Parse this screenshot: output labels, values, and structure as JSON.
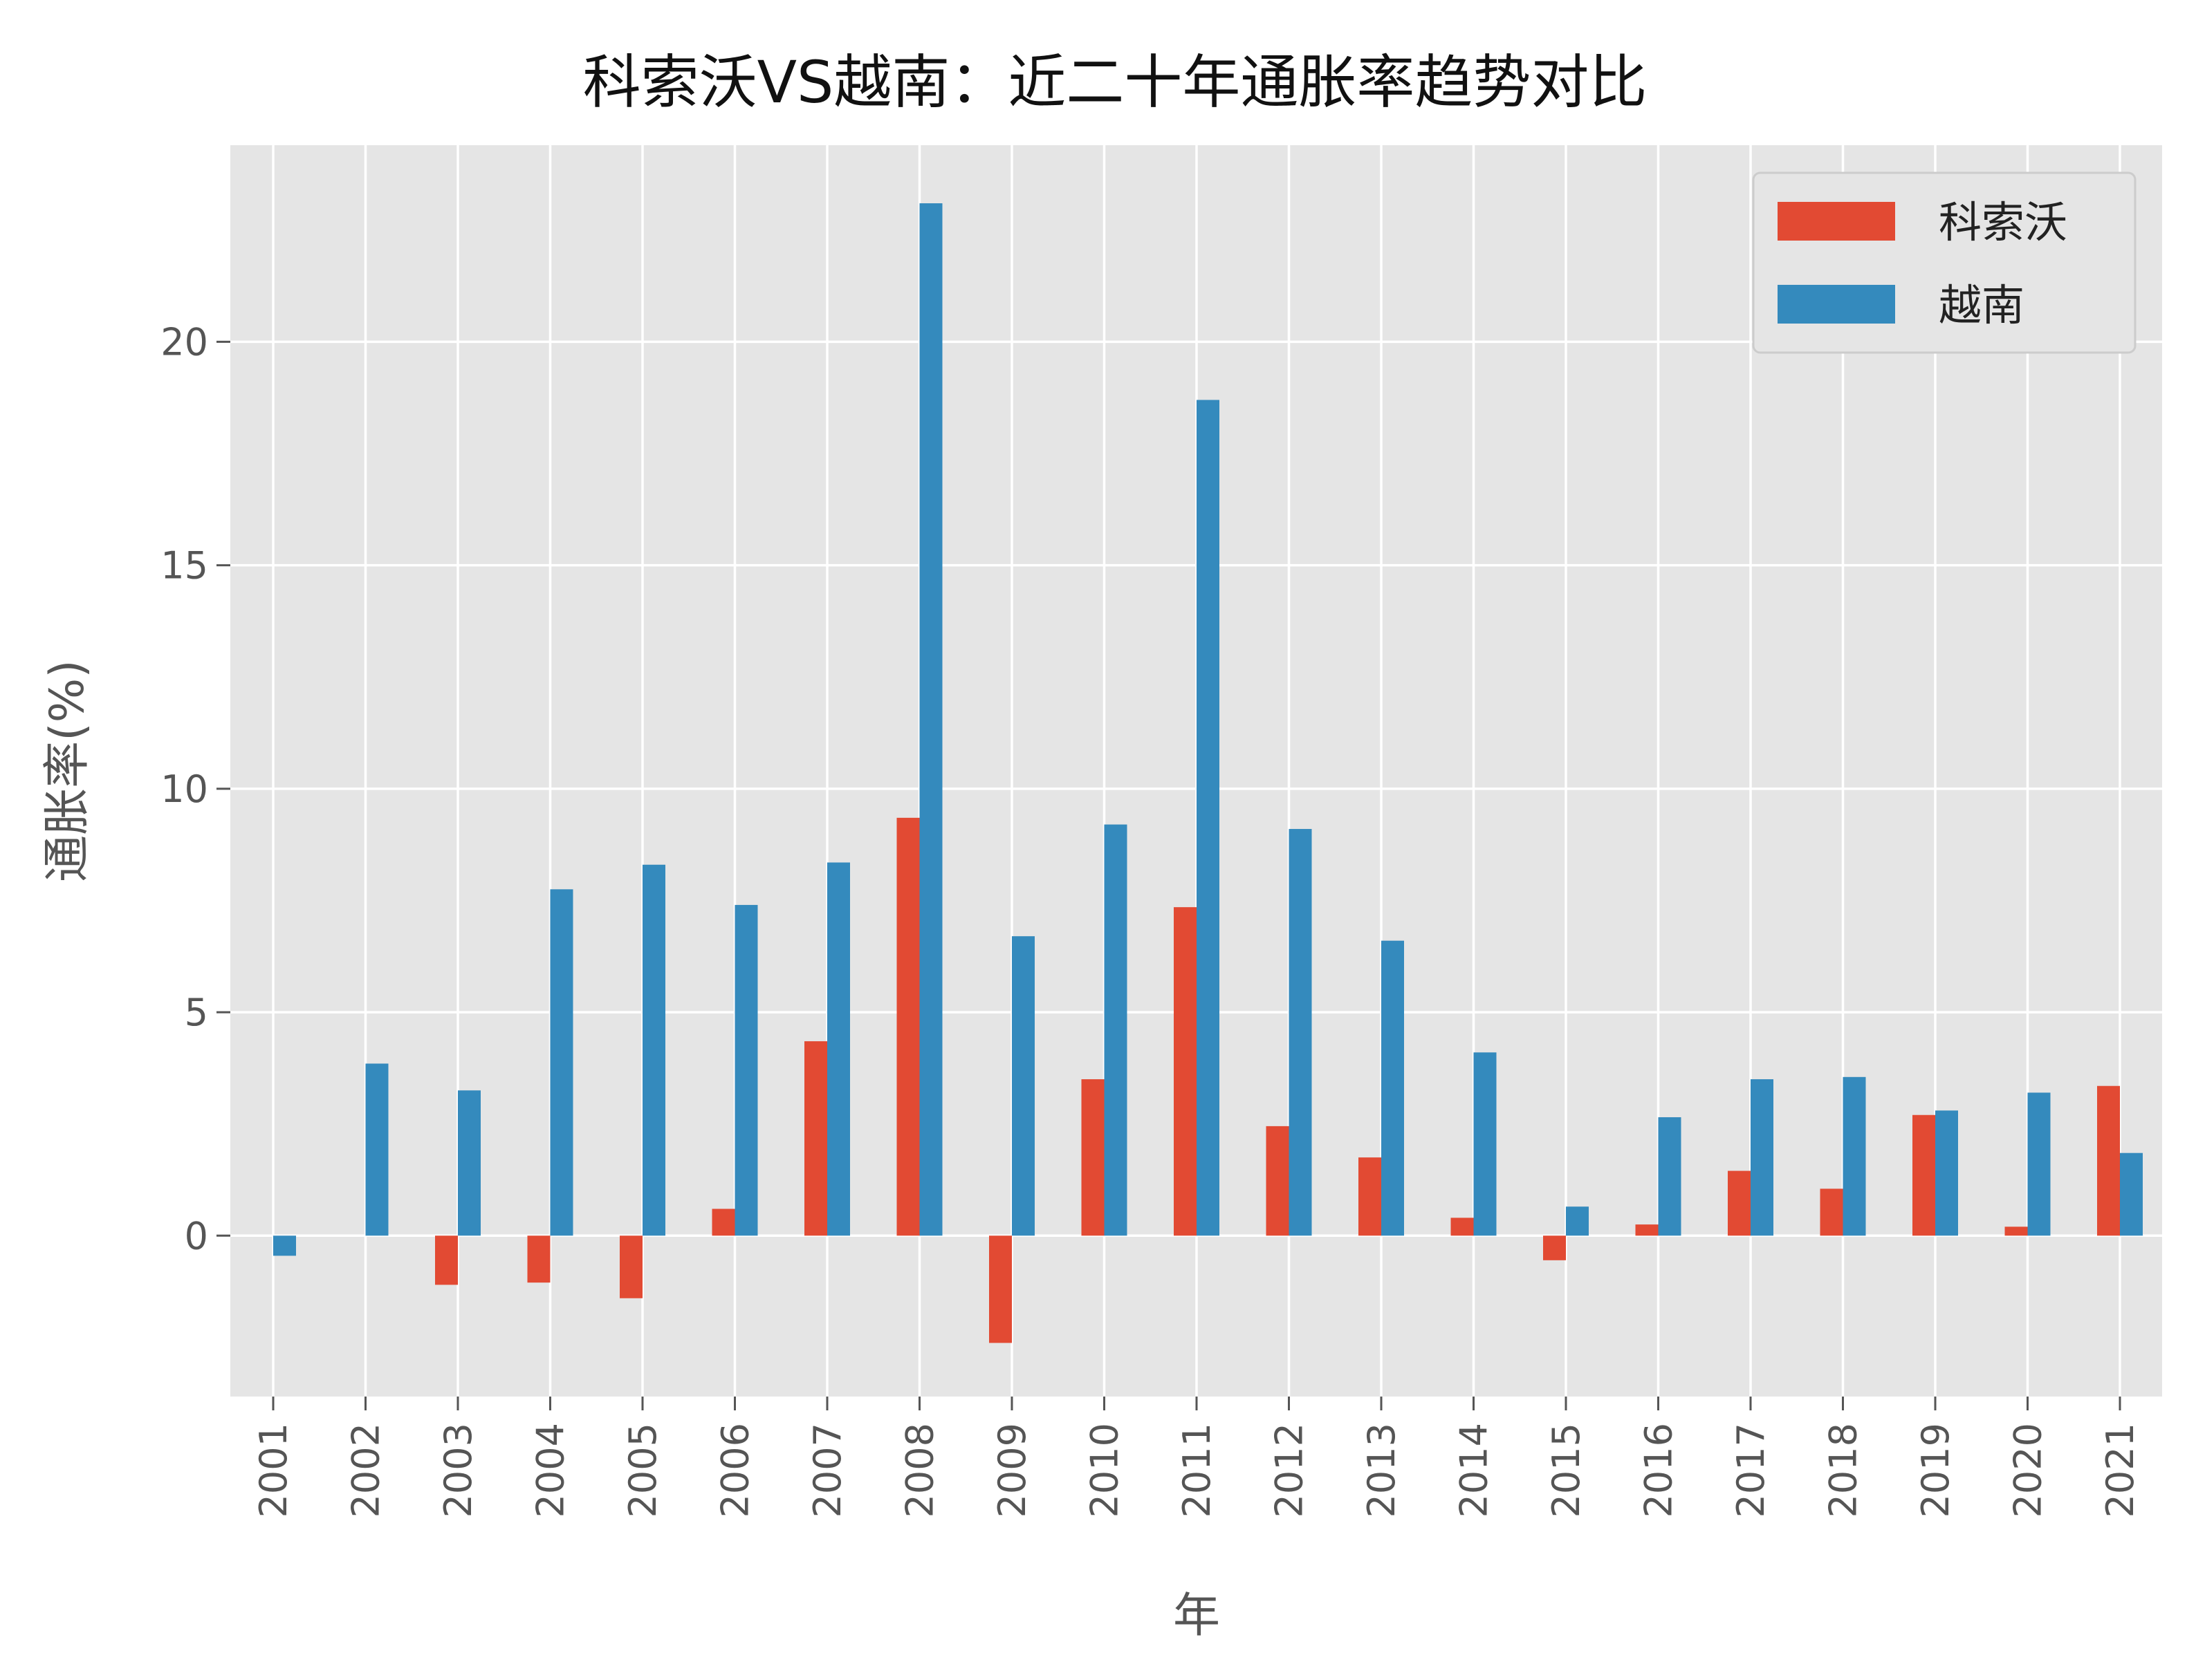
{
  "chart_data": {
    "type": "bar",
    "title": "科索沃VS越南：近二十年通胀率趋势对比",
    "xlabel": "年",
    "ylabel": "通胀率(%)",
    "categories": [
      "2001",
      "2002",
      "2003",
      "2004",
      "2005",
      "2006",
      "2007",
      "2008",
      "2009",
      "2010",
      "2011",
      "2012",
      "2013",
      "2014",
      "2015",
      "2016",
      "2017",
      "2018",
      "2019",
      "2020",
      "2021"
    ],
    "series": [
      {
        "name": "科索沃",
        "color": "#E24A33",
        "values": [
          0,
          0,
          -1.1,
          -1.05,
          -1.4,
          0.6,
          4.35,
          9.35,
          -2.4,
          3.5,
          7.35,
          2.45,
          1.75,
          0.4,
          -0.55,
          0.25,
          1.45,
          1.05,
          2.7,
          0.2,
          3.35
        ]
      },
      {
        "name": "越南",
        "color": "#348ABD",
        "values": [
          -0.45,
          3.85,
          3.25,
          7.75,
          8.3,
          7.4,
          8.35,
          23.1,
          6.7,
          9.2,
          18.7,
          9.1,
          6.6,
          4.1,
          0.65,
          2.65,
          3.5,
          3.55,
          2.8,
          3.2,
          1.85
        ]
      }
    ],
    "ylim": [
      -3.6,
      24.4
    ],
    "yticks": [
      0,
      5,
      10,
      15,
      20
    ],
    "grid": true,
    "legend_position": "top-right",
    "background_color": "#E5E5E5",
    "grid_color": "#FFFFFF"
  }
}
